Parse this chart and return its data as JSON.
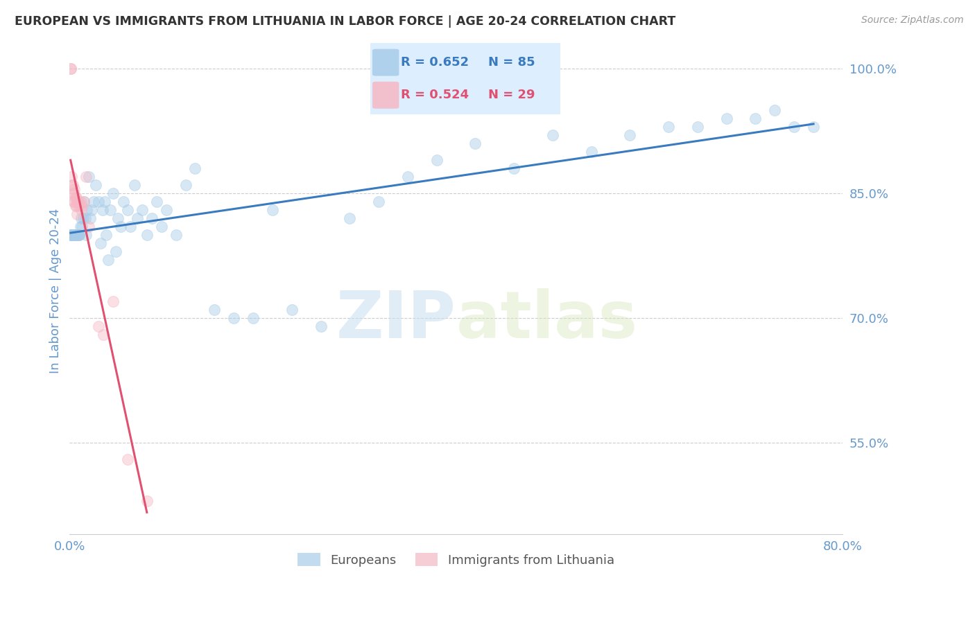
{
  "title": "EUROPEAN VS IMMIGRANTS FROM LITHUANIA IN LABOR FORCE | AGE 20-24 CORRELATION CHART",
  "source": "Source: ZipAtlas.com",
  "ylabel": "In Labor Force | Age 20-24",
  "xmin": 0.0,
  "xmax": 0.8,
  "ymin": 0.44,
  "ymax": 1.025,
  "xticks": [
    0.0,
    0.1,
    0.2,
    0.3,
    0.4,
    0.5,
    0.6,
    0.7,
    0.8
  ],
  "xticklabels": [
    "0.0%",
    "",
    "",
    "",
    "",
    "",
    "",
    "",
    "80.0%"
  ],
  "yticks_right": [
    0.55,
    0.7,
    0.85,
    1.0
  ],
  "yticklabels_right": [
    "55.0%",
    "70.0%",
    "85.0%",
    "100.0%"
  ],
  "grid_color": "#cccccc",
  "background_color": "#ffffff",
  "watermark_zip": "ZIP",
  "watermark_atlas": "atlas",
  "legend_blue_r": "R = 0.652",
  "legend_blue_n": "N = 85",
  "legend_pink_r": "R = 0.524",
  "legend_pink_n": "N = 29",
  "blue_color": "#a8cce8",
  "pink_color": "#f5b8c4",
  "blue_line_color": "#3a7bbf",
  "pink_line_color": "#e05070",
  "title_color": "#333333",
  "axis_label_color": "#6699cc",
  "tick_color": "#6699cc",
  "europeans_x": [
    0.001,
    0.001,
    0.002,
    0.002,
    0.002,
    0.003,
    0.003,
    0.003,
    0.004,
    0.004,
    0.004,
    0.005,
    0.005,
    0.005,
    0.006,
    0.006,
    0.006,
    0.007,
    0.007,
    0.008,
    0.008,
    0.009,
    0.009,
    0.01,
    0.01,
    0.011,
    0.012,
    0.013,
    0.014,
    0.015,
    0.016,
    0.017,
    0.018,
    0.02,
    0.021,
    0.023,
    0.025,
    0.027,
    0.03,
    0.032,
    0.034,
    0.036,
    0.038,
    0.04,
    0.042,
    0.045,
    0.048,
    0.05,
    0.053,
    0.056,
    0.06,
    0.063,
    0.067,
    0.07,
    0.075,
    0.08,
    0.085,
    0.09,
    0.095,
    0.1,
    0.11,
    0.12,
    0.13,
    0.15,
    0.17,
    0.19,
    0.21,
    0.23,
    0.26,
    0.29,
    0.32,
    0.35,
    0.38,
    0.42,
    0.46,
    0.5,
    0.54,
    0.58,
    0.62,
    0.65,
    0.68,
    0.71,
    0.73,
    0.75,
    0.77
  ],
  "europeans_y": [
    0.8,
    0.8,
    0.8,
    0.8,
    0.8,
    0.8,
    0.8,
    0.8,
    0.8,
    0.8,
    0.8,
    0.8,
    0.8,
    0.8,
    0.8,
    0.8,
    0.8,
    0.8,
    0.8,
    0.8,
    0.8,
    0.8,
    0.8,
    0.8,
    0.8,
    0.81,
    0.82,
    0.81,
    0.82,
    0.84,
    0.82,
    0.8,
    0.83,
    0.87,
    0.82,
    0.83,
    0.84,
    0.86,
    0.84,
    0.79,
    0.83,
    0.84,
    0.8,
    0.77,
    0.83,
    0.85,
    0.78,
    0.82,
    0.81,
    0.84,
    0.83,
    0.81,
    0.86,
    0.82,
    0.83,
    0.8,
    0.82,
    0.84,
    0.81,
    0.83,
    0.8,
    0.86,
    0.88,
    0.71,
    0.7,
    0.7,
    0.83,
    0.71,
    0.69,
    0.82,
    0.84,
    0.87,
    0.89,
    0.91,
    0.88,
    0.92,
    0.9,
    0.92,
    0.93,
    0.93,
    0.94,
    0.94,
    0.95,
    0.93,
    0.93
  ],
  "lithuania_x": [
    0.001,
    0.001,
    0.002,
    0.002,
    0.003,
    0.003,
    0.004,
    0.004,
    0.005,
    0.005,
    0.006,
    0.006,
    0.007,
    0.007,
    0.008,
    0.008,
    0.009,
    0.01,
    0.011,
    0.012,
    0.013,
    0.015,
    0.017,
    0.02,
    0.03,
    0.035,
    0.045,
    0.06,
    0.08
  ],
  "lithuania_y": [
    1.0,
    1.0,
    0.87,
    0.86,
    0.86,
    0.85,
    0.85,
    0.84,
    0.855,
    0.84,
    0.845,
    0.835,
    0.845,
    0.835,
    0.84,
    0.825,
    0.84,
    0.835,
    0.84,
    0.83,
    0.835,
    0.84,
    0.87,
    0.81,
    0.69,
    0.68,
    0.72,
    0.53,
    0.48
  ],
  "marker_size": 130,
  "marker_alpha": 0.45,
  "marker_edgewidth": 0.8
}
